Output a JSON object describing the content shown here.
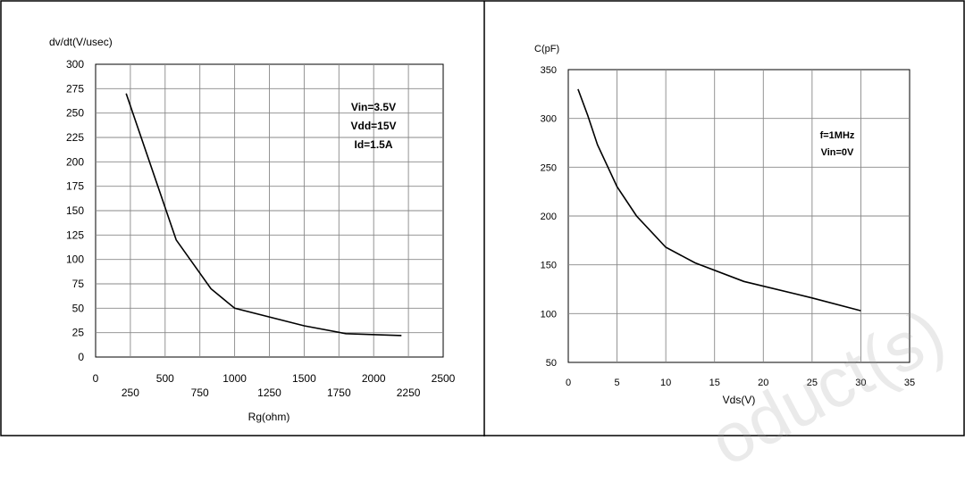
{
  "watermark": "oduct(s)",
  "chart_data": [
    {
      "type": "line",
      "xlabel": "Rg(ohm)",
      "ylabel": "dv/dt(V/usec)",
      "xlim": [
        0,
        2500
      ],
      "ylim": [
        0,
        300
      ],
      "x_ticks_major": [
        0,
        500,
        1000,
        1500,
        2000,
        2500
      ],
      "x_ticks_minor": [
        250,
        750,
        1250,
        1750,
        2250
      ],
      "y_ticks": [
        0,
        25,
        50,
        75,
        100,
        125,
        150,
        175,
        200,
        225,
        250,
        275,
        300
      ],
      "grid": true,
      "annotations": [
        "Vin=3.5V",
        "Vdd=15V",
        "Id=1.5A"
      ],
      "series": [
        {
          "x": [
            220,
            580,
            830,
            1000,
            1500,
            1800,
            2200
          ],
          "y": [
            270,
            120,
            70,
            50,
            32,
            24,
            22
          ]
        }
      ]
    },
    {
      "type": "line",
      "xlabel": "Vds(V)",
      "ylabel": "C(pF)",
      "xlim": [
        0,
        35
      ],
      "ylim": [
        50,
        350
      ],
      "x_ticks": [
        0,
        5,
        10,
        15,
        20,
        25,
        30,
        35
      ],
      "y_ticks": [
        50,
        100,
        150,
        200,
        250,
        300,
        350
      ],
      "grid": true,
      "annotations": [
        "f=1MHz",
        "Vin=0V"
      ],
      "series": [
        {
          "x": [
            1,
            2,
            3,
            5,
            7,
            10,
            13,
            18,
            25,
            30
          ],
          "y": [
            330,
            303,
            273,
            230,
            200,
            168,
            152,
            133,
            116,
            103
          ]
        }
      ]
    }
  ]
}
